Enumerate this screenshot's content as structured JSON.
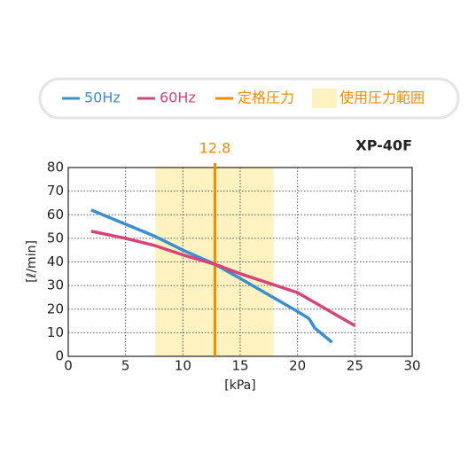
{
  "chart_data": {
    "type": "line",
    "title": "XP-40F",
    "xlabel": "[kPa]",
    "ylabel": "[ℓ/min]",
    "xlim": [
      0,
      30
    ],
    "xticks": [
      0,
      5,
      10,
      15,
      20,
      25,
      30
    ],
    "ylim": [
      0,
      80
    ],
    "yticks": [
      0,
      10,
      20,
      30,
      40,
      50,
      60,
      70,
      80
    ],
    "grid": true,
    "series": [
      {
        "name": "50Hz",
        "color": "#3a8fd0",
        "x": [
          2,
          3,
          5,
          7.5,
          10,
          12.8,
          15,
          17.5,
          20,
          21,
          21.5,
          22,
          23
        ],
        "values": [
          62,
          60,
          56,
          51,
          45,
          39,
          33,
          26,
          19,
          16,
          12,
          10,
          6
        ]
      },
      {
        "name": "60Hz",
        "color": "#d6457a",
        "x": [
          2,
          5,
          7.5,
          10,
          12.8,
          15,
          17.5,
          20,
          22.5,
          25
        ],
        "values": [
          53,
          50,
          47,
          43,
          39,
          35,
          31,
          27,
          20,
          13
        ]
      }
    ],
    "rated": {
      "name": "定格圧力",
      "value": 12.8,
      "color": "#f08c00"
    },
    "range": {
      "name": "使用圧力範囲",
      "xrange": [
        7.6,
        17.9
      ],
      "color": "#fdf2c0"
    }
  }
}
